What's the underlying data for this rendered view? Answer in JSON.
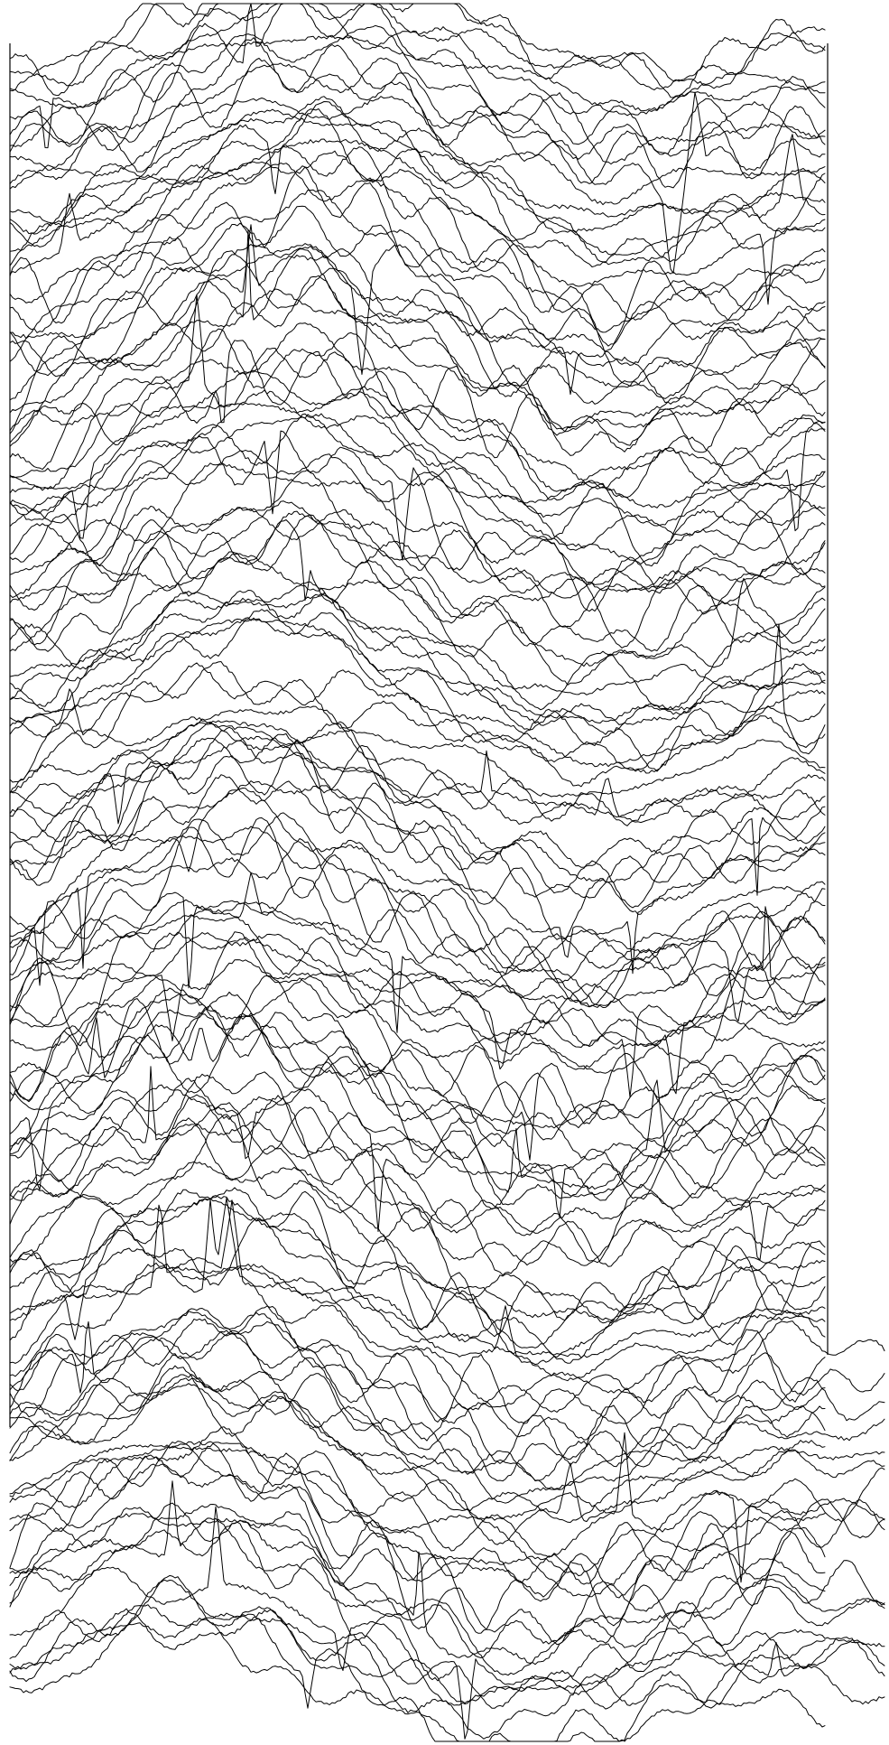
{
  "figure": {
    "background": "#ffffff",
    "line_color": "#000000",
    "trace_count": 130,
    "seed": 20240617
  }
}
